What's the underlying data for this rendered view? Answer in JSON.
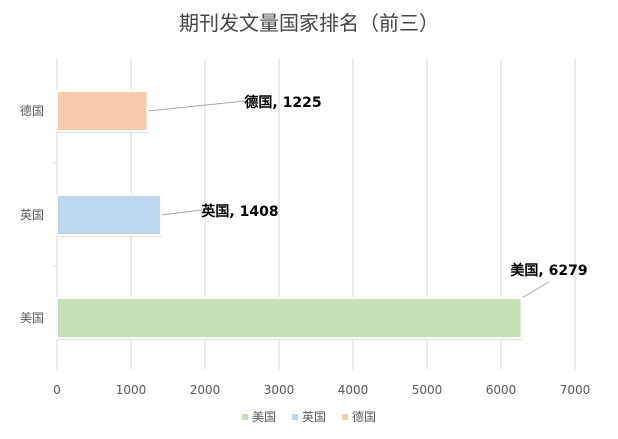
{
  "chart_data": {
    "type": "bar",
    "orientation": "horizontal",
    "title": "期刊发文量国家排名（前三）",
    "categories": [
      "德国",
      "英国",
      "美国"
    ],
    "values": [
      1225,
      1408,
      6279
    ],
    "data_labels": [
      "德国, 1225",
      "英国, 1408",
      "美国, 6279"
    ],
    "colors": [
      "#F8CBAD",
      "#BDD7EE",
      "#C5E0B4"
    ],
    "xlim": [
      0,
      7000
    ],
    "xticks": [
      0,
      1000,
      2000,
      3000,
      4000,
      5000,
      6000,
      7000
    ],
    "grid": true,
    "legend": {
      "position": "bottom",
      "entries": [
        {
          "label": "美国",
          "color": "#C5E0B4"
        },
        {
          "label": "英国",
          "color": "#BDD7EE"
        },
        {
          "label": "德国",
          "color": "#F8CBAD"
        }
      ]
    }
  }
}
